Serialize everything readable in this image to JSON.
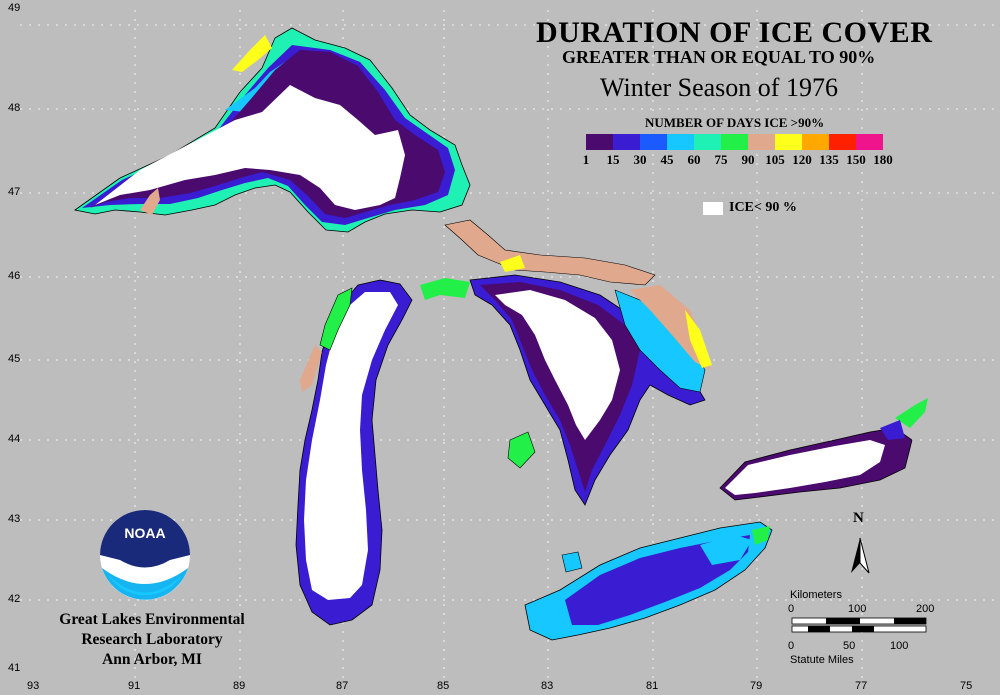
{
  "title": {
    "line1": "DURATION OF ICE COVER",
    "line2": "GREATER THAN OR EQUAL TO 90%",
    "line3": "Winter Season of 1976"
  },
  "legend": {
    "title": "NUMBER OF DAYS ICE >90%",
    "colors": [
      "#4a0a6e",
      "#3a1cd2",
      "#1a5aff",
      "#16c8ff",
      "#1ff0b4",
      "#22f048",
      "#e0a88c",
      "#ffff1c",
      "#ffa800",
      "#ff2000",
      "#f0148c"
    ],
    "labels": [
      "1",
      "15",
      "30",
      "45",
      "60",
      "75",
      "90",
      "105",
      "120",
      "135",
      "150",
      "180"
    ],
    "ice_label": "ICE< 90 %",
    "ice_color": "#ffffff"
  },
  "axes": {
    "lon_labels": [
      "93",
      "91",
      "89",
      "87",
      "85",
      "83",
      "81",
      "79",
      "77",
      "75"
    ],
    "lat_labels": [
      "49",
      "48",
      "47",
      "46",
      "45",
      "44",
      "43",
      "42",
      "41"
    ]
  },
  "organization": {
    "line1": "Great Lakes Environmental",
    "line2": "Research Laboratory",
    "line3": "Ann Arbor, MI"
  },
  "logo": {
    "text": "NOAA"
  },
  "north_arrow": {
    "label": "N"
  },
  "scale_bar": {
    "km_title": "Kilometers",
    "km_ticks": [
      "0",
      "100",
      "200"
    ],
    "mi_ticks": [
      "0",
      "50",
      "100"
    ],
    "mi_title": "Statute Miles"
  },
  "colors": {
    "background": "#bdbdbd",
    "land_outline": "#000000"
  }
}
